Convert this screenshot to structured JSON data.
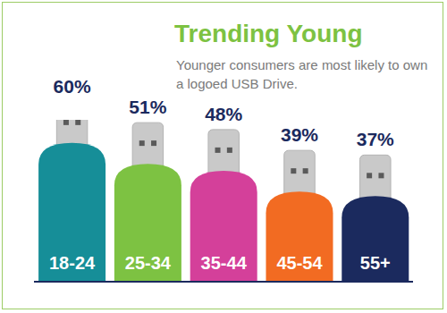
{
  "chart_data": {
    "type": "bar",
    "title": "Trending Young",
    "subtitle": "Younger consumers are most likely to own a logoed USB Drive.",
    "categories": [
      "18-24",
      "25-34",
      "35-44",
      "45-54",
      "55+"
    ],
    "values": [
      60,
      51,
      48,
      39,
      37
    ],
    "value_labels": [
      "60%",
      "51%",
      "48%",
      "39%",
      "37%"
    ],
    "colors": [
      "#168e98",
      "#7dc242",
      "#d4409a",
      "#f26b22",
      "#1b2a5e"
    ],
    "ylim": [
      0,
      70
    ],
    "data_labels": true,
    "tick_labels": false,
    "grid": false
  }
}
